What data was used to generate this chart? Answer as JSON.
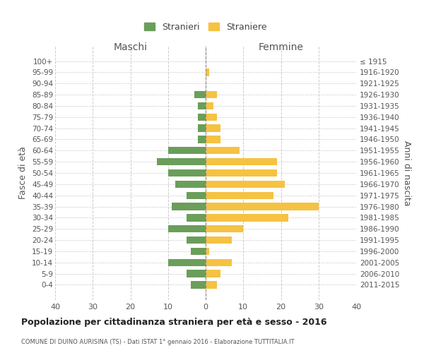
{
  "age_groups": [
    "100+",
    "95-99",
    "90-94",
    "85-89",
    "80-84",
    "75-79",
    "70-74",
    "65-69",
    "60-64",
    "55-59",
    "50-54",
    "45-49",
    "40-44",
    "35-39",
    "30-34",
    "25-29",
    "20-24",
    "15-19",
    "10-14",
    "5-9",
    "0-4"
  ],
  "birth_years": [
    "≤ 1915",
    "1916-1920",
    "1921-1925",
    "1926-1930",
    "1931-1935",
    "1936-1940",
    "1941-1945",
    "1946-1950",
    "1951-1955",
    "1956-1960",
    "1961-1965",
    "1966-1970",
    "1971-1975",
    "1976-1980",
    "1981-1985",
    "1986-1990",
    "1991-1995",
    "1996-2000",
    "2001-2005",
    "2006-2010",
    "2011-2015"
  ],
  "maschi": [
    0,
    0,
    0,
    3,
    2,
    2,
    2,
    2,
    10,
    13,
    10,
    8,
    5,
    9,
    5,
    10,
    5,
    4,
    10,
    5,
    4
  ],
  "femmine": [
    0,
    1,
    0,
    3,
    2,
    3,
    4,
    4,
    9,
    19,
    19,
    21,
    18,
    30,
    22,
    10,
    7,
    1,
    7,
    4,
    3
  ],
  "color_maschi": "#6a9e5a",
  "color_femmine": "#f5c242",
  "title": "Popolazione per cittadinanza straniera per età e sesso - 2016",
  "subtitle": "COMUNE DI DUINO AURISINA (TS) - Dati ISTAT 1° gennaio 2016 - Elaborazione TUTTITALIA.IT",
  "ylabel_left": "Fasce di età",
  "ylabel_right": "Anni di nascita",
  "xlabel_left": "Maschi",
  "xlabel_right": "Femmine",
  "xlim": 40,
  "legend_maschi": "Stranieri",
  "legend_femmine": "Straniere",
  "background_color": "#ffffff",
  "grid_color": "#cccccc"
}
